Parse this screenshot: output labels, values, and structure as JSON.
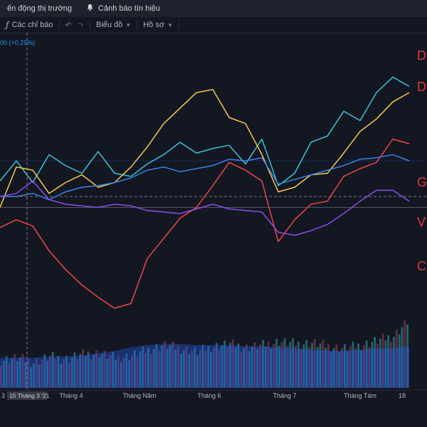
{
  "topbar": {
    "market_label": "ến động thị trường",
    "alert_label": "Cảnh báo tín hiệu"
  },
  "toolbar": {
    "indicators_label": "Các chỉ báo",
    "chart_label": "Biểu đồ",
    "profile_label": "Hồ sơ"
  },
  "change_label": "00 (+0.25%)",
  "colors": {
    "background": "#131722",
    "panel": "#1e222d",
    "cyan": "#3bc2d5",
    "yellow": "#f7c948",
    "red": "#ef4646",
    "purple": "#8a4de6",
    "blue": "#3a84e8"
  },
  "chart_data": {
    "type": "line",
    "x": [
      "03-01",
      "03-08",
      "03-15",
      "03-22",
      "03-29",
      "04-05",
      "04-12",
      "04-19",
      "04-26",
      "05-03",
      "05-10",
      "05-17",
      "05-24",
      "05-31",
      "06-07",
      "06-14",
      "06-21",
      "06-28",
      "07-05",
      "07-12",
      "07-19",
      "07-26",
      "08-02",
      "08-09",
      "08-16",
      "08-23"
    ],
    "x_tick_labels": [
      "3",
      "Tháng 4",
      "Tháng Năm",
      "Tháng 6",
      "Tháng 7",
      "Tháng Tám",
      "18"
    ],
    "crosshair_label": "15 Tháng 3 '21",
    "series": [
      {
        "name": "D",
        "color": "#3bc2d5",
        "values": [
          5,
          18,
          4,
          22,
          15,
          10,
          24,
          10,
          8,
          16,
          22,
          30,
          23,
          26,
          28,
          16,
          32,
          2,
          10,
          30,
          34,
          50,
          44,
          62,
          72,
          66
        ]
      },
      {
        "name": "DI",
        "color": "#f7c948",
        "values": [
          -12,
          14,
          12,
          -3,
          4,
          9,
          1,
          4,
          14,
          27,
          42,
          52,
          62,
          64,
          46,
          42,
          22,
          -2,
          1,
          9,
          10,
          23,
          37,
          45,
          56,
          62
        ]
      },
      {
        "name": "G",
        "color": "#ef4646",
        "values": [
          -25,
          -20,
          -24,
          -40,
          -52,
          -62,
          -70,
          -77,
          -74,
          -45,
          -32,
          -19,
          -12,
          2,
          17,
          12,
          5,
          -34,
          -20,
          -10,
          -8,
          8,
          13,
          17,
          32,
          29
        ]
      },
      {
        "name": "V",
        "color": "#3a84e8",
        "values": [
          -5,
          -5,
          -3,
          -7,
          -2,
          1,
          2,
          4,
          7,
          12,
          14,
          11,
          13,
          15,
          19,
          18,
          20,
          3,
          6,
          9,
          12,
          15,
          19,
          20,
          22,
          18
        ]
      },
      {
        "name": "C",
        "color": "#8a4de6",
        "values": [
          -5,
          -3,
          5,
          -7,
          -10,
          -11,
          -12,
          -10,
          -11,
          -14,
          -15,
          -16,
          -13,
          -10,
          -13,
          -14,
          -15,
          -28,
          -30,
          -27,
          -23,
          -16,
          -8,
          -1,
          -1,
          -8
        ]
      }
    ],
    "ylim": [
      -85,
      85
    ],
    "volume": {
      "values": [
        24,
        26,
        22,
        27,
        25,
        29,
        30,
        26,
        28,
        33,
        37,
        34,
        31,
        36,
        38,
        35,
        37,
        40,
        38,
        39,
        36,
        34,
        37,
        41,
        45,
        60
      ],
      "avg": [
        26,
        26,
        26,
        27,
        27,
        28,
        30,
        32,
        35,
        37,
        38,
        38,
        37,
        37,
        37,
        36,
        36,
        35,
        34,
        33,
        32,
        32,
        33,
        34,
        34,
        36
      ],
      "max": 80
    }
  }
}
